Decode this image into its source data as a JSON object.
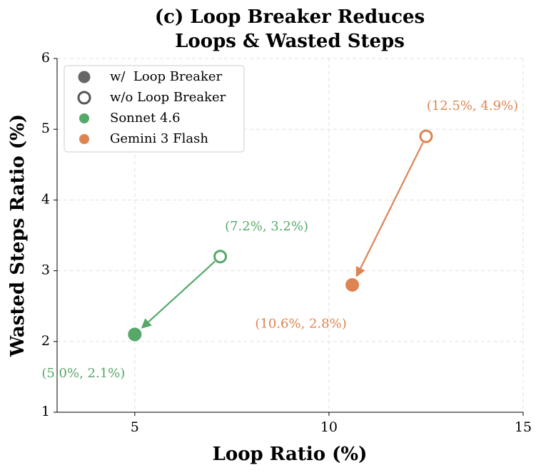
{
  "chart_data": {
    "type": "scatter",
    "title": [
      "(c) Loop Breaker Reduces",
      "Loops & Wasted Steps"
    ],
    "x_label": "Loop Ratio (%)",
    "y_label": "Wasted Steps Ratio (%)",
    "xlim": [
      3,
      15
    ],
    "xticks": [
      5,
      10,
      15
    ],
    "ylim": [
      1,
      6
    ],
    "yticks": [
      1,
      2,
      3,
      4,
      5,
      6
    ],
    "grid": true,
    "legend_position": "upper left",
    "marker_legend": [
      "w/  Loop Breaker",
      "w/o Loop Breaker"
    ],
    "series": [
      {
        "name": "Sonnet 4.6",
        "color": "#55a868",
        "x": [
          5.0,
          7.2
        ],
        "y": [
          2.1,
          3.2
        ],
        "value_labels": [
          "(5.0%, 2.1%)",
          "(7.2%, 3.2%)"
        ]
      },
      {
        "name": "Gemini 3 Flash",
        "color": "#dd8452",
        "x": [
          10.6,
          12.5
        ],
        "y": [
          2.8,
          4.9
        ],
        "value_labels": [
          "(10.6%, 2.8%)",
          "(12.5%, 4.9%)"
        ]
      }
    ]
  }
}
